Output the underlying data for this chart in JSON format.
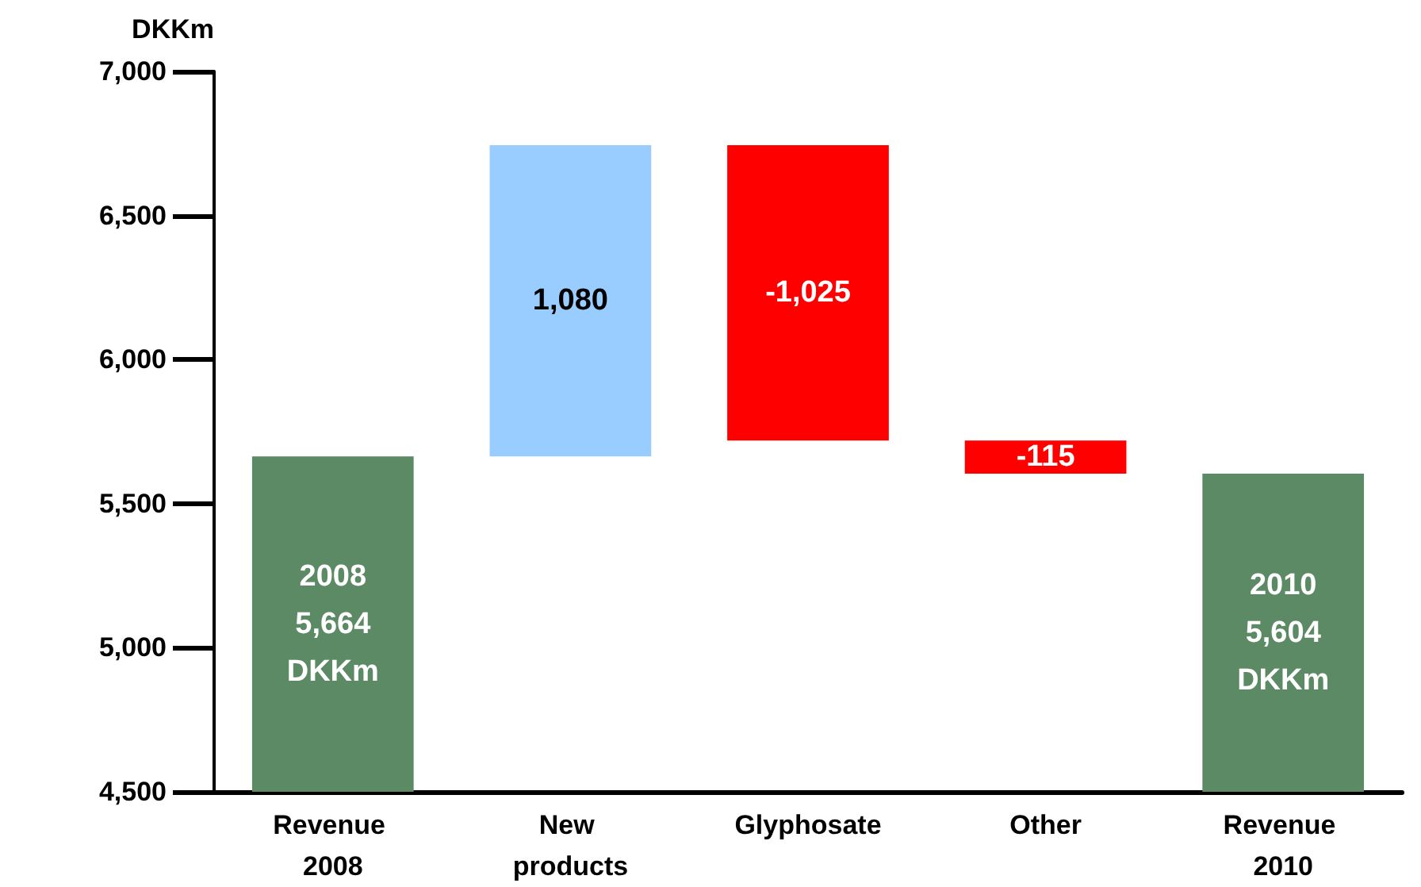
{
  "chart_data": {
    "type": "bar",
    "ylabel": "DKKm",
    "categories": [
      "Revenue 2008",
      "New products",
      "Glyphosate",
      "Other",
      "Revenue 2010"
    ],
    "values": [
      5664,
      1080,
      -1025,
      -115,
      5604
    ],
    "base": [
      null,
      5664,
      6744,
      5719,
      null
    ],
    "colors": [
      "#5b8a64",
      "#99ccff",
      "#ff0000",
      "#ff0000",
      "#5b8a64"
    ],
    "value_labels": [
      "2008\n5,664\nDKKm",
      "1,080",
      "-1,025",
      "-115",
      "2010\n5,604\nDKKm"
    ],
    "ylim": [
      4500,
      7000
    ],
    "yticks": [
      {
        "value": 4500,
        "label": "4,500"
      },
      {
        "value": 5000,
        "label": "5,000"
      },
      {
        "value": 5500,
        "label": "5,500"
      },
      {
        "value": 6000,
        "label": "6,000"
      },
      {
        "value": 6500,
        "label": "6,500"
      },
      {
        "value": 7000,
        "label": "7,000"
      }
    ],
    "grid": false
  }
}
